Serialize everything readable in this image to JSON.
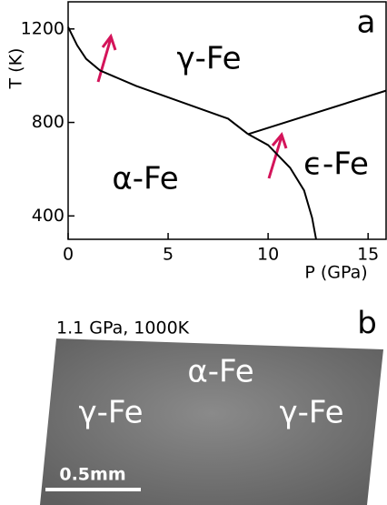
{
  "chart_data": {
    "type": "line",
    "xlabel": "P (GPa)",
    "ylabel": "T (K)",
    "panel_label": "a",
    "xlim": [
      0,
      15.9
    ],
    "ylim": [
      300,
      1316
    ],
    "xticks": [
      0,
      5,
      10,
      15
    ],
    "yticks": [
      400,
      800,
      1200
    ],
    "series": [
      {
        "color": "#000000",
        "x": [
          0,
          0.45,
          0.9,
          1.6,
          3.4,
          5.7,
          8,
          9
        ],
        "values": [
          1208,
          1130,
          1072,
          1022,
          956,
          886,
          816,
          750
        ]
      },
      {
        "color": "#000000",
        "x": [
          9,
          10,
          11.1,
          11.8,
          12.2,
          12.4
        ],
        "values": [
          750,
          703,
          606,
          509,
          392,
          300
        ]
      },
      {
        "color": "#000000",
        "x": [
          9,
          15.9
        ],
        "values": [
          750,
          936
        ]
      }
    ],
    "annotations": [
      "γ-Fe",
      "α-Fe",
      "ϵ-Fe"
    ]
  },
  "panel_b": {
    "condition": "1.1 GPa, 1000K",
    "panel_label": "b",
    "labels": [
      "α-Fe",
      "γ-Fe",
      "γ-Fe"
    ],
    "scale_bar": "0.5mm"
  }
}
